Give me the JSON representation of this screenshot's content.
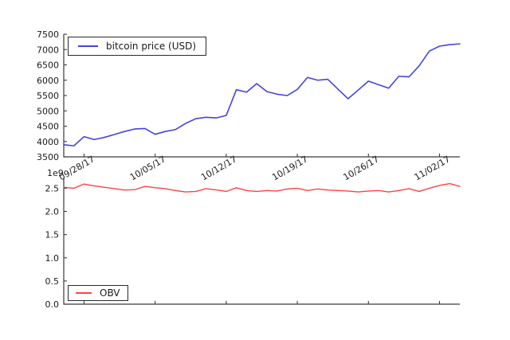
{
  "figure": {
    "background": "#ffffff",
    "axis_color": "#3a3a3a",
    "text_color": "#1a1a1a"
  },
  "chart_data": [
    {
      "type": "line",
      "name": "bitcoin-price",
      "legend_label": "bitcoin price (USD)",
      "legend_position": "upper left",
      "line_color": "#4343e0",
      "n_points": 40,
      "values": [
        3895,
        3860,
        4160,
        4065,
        4135,
        4230,
        4330,
        4410,
        4425,
        4235,
        4330,
        4390,
        4590,
        4745,
        4790,
        4770,
        4850,
        5690,
        5610,
        5890,
        5630,
        5545,
        5500,
        5700,
        6090,
        6000,
        6030,
        5710,
        5395,
        5680,
        5970,
        5855,
        5740,
        6130,
        6110,
        6470,
        6950,
        7110,
        7160,
        7185
      ],
      "x_tick_labels": [
        "09/28/17",
        "10/05/17",
        "10/12/17",
        "10/19/17",
        "10/26/17",
        "11/02/17"
      ],
      "x_tick_indices": [
        2,
        9,
        16,
        23,
        30,
        37
      ],
      "x_tick_rotation_deg": 30,
      "y_tick_labels": [
        "3500",
        "4000",
        "4500",
        "5000",
        "5500",
        "6000",
        "6500",
        "7000",
        "7500"
      ],
      "y_tick_values": [
        3500,
        4000,
        4500,
        5000,
        5500,
        6000,
        6500,
        7000,
        7500
      ],
      "ylim": [
        3500,
        7500
      ],
      "grid": false
    },
    {
      "type": "line",
      "name": "obv",
      "legend_label": "OBV",
      "legend_position": "lower left",
      "line_color": "#ff4242",
      "offset_label": "1e9",
      "n_points": 40,
      "values": [
        2.52,
        2.5,
        2.59,
        2.55,
        2.52,
        2.49,
        2.46,
        2.47,
        2.54,
        2.51,
        2.49,
        2.45,
        2.42,
        2.43,
        2.49,
        2.465,
        2.43,
        2.51,
        2.45,
        2.43,
        2.45,
        2.44,
        2.485,
        2.5,
        2.45,
        2.485,
        2.46,
        2.45,
        2.44,
        2.42,
        2.44,
        2.45,
        2.42,
        2.45,
        2.49,
        2.43,
        2.5,
        2.56,
        2.6,
        2.54
      ],
      "x_tick_labels": [],
      "x_tick_indices": [
        2,
        9,
        16,
        23,
        30,
        37
      ],
      "y_tick_labels": [
        "0.0",
        "0.5",
        "1.0",
        "1.5",
        "2.0",
        "2.5"
      ],
      "y_tick_values": [
        0,
        0.5,
        1.0,
        1.5,
        2.0,
        2.5
      ],
      "ylim": [
        0,
        2.73
      ],
      "grid": false
    }
  ]
}
